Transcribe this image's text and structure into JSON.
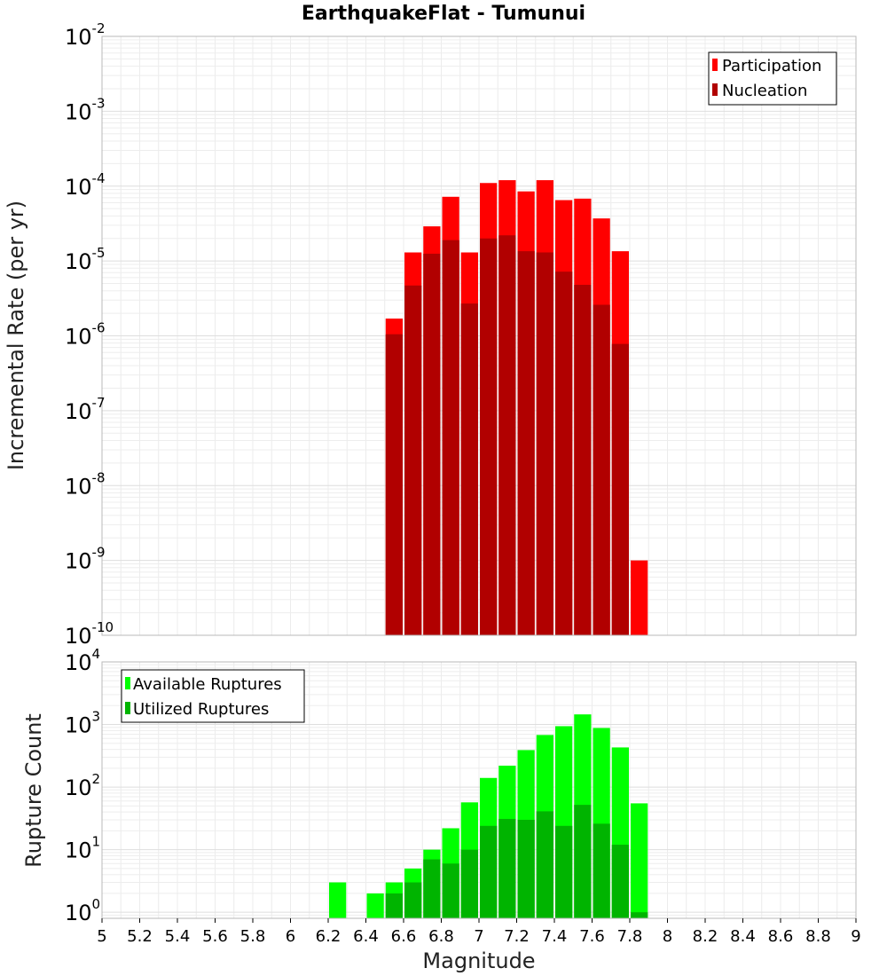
{
  "title": "EarthquakeFlat - Tumunui",
  "chart_data": [
    {
      "type": "bar",
      "id": "rate",
      "ylabel": "Incremental Rate (per yr)",
      "yscale": "log",
      "ylim": [
        1e-10,
        0.01
      ],
      "xlim": [
        5,
        9
      ],
      "bin_width": 0.1,
      "legend_position": "top-right",
      "grid": true,
      "colors": {
        "Participation": "#ff0000",
        "Nucleation": "#b10000"
      },
      "x": [
        6.55,
        6.65,
        6.75,
        6.85,
        6.95,
        7.05,
        7.15,
        7.25,
        7.35,
        7.45,
        7.55,
        7.65,
        7.75,
        7.85
      ],
      "series": [
        {
          "name": "Participation",
          "values": [
            1.7e-06,
            1.3e-05,
            2.9e-05,
            7.2e-05,
            1.3e-05,
            0.00011,
            0.00012,
            8.5e-05,
            0.00012,
            6.5e-05,
            6.8e-05,
            3.7e-05,
            1.35e-05,
            1e-09
          ]
        },
        {
          "name": "Nucleation",
          "values": [
            1.05e-06,
            4.7e-06,
            1.25e-05,
            1.9e-05,
            2.7e-06,
            2e-05,
            2.2e-05,
            1.35e-05,
            1.3e-05,
            7.2e-06,
            4.8e-06,
            2.6e-06,
            7.8e-07,
            null
          ]
        }
      ]
    },
    {
      "type": "bar",
      "id": "count",
      "ylabel": "Rupture Count",
      "xlabel": "Magnitude",
      "yscale": "log",
      "ylim": [
        0.8,
        10000.0
      ],
      "xlim": [
        5,
        9
      ],
      "bin_width": 0.1,
      "legend_position": "top-left",
      "grid": true,
      "colors": {
        "Available Ruptures": "#00ff00",
        "Utilized Ruptures": "#00b400"
      },
      "x": [
        6.25,
        6.45,
        6.55,
        6.65,
        6.75,
        6.85,
        6.95,
        7.05,
        7.15,
        7.25,
        7.35,
        7.45,
        7.55,
        7.65,
        7.75,
        7.85
      ],
      "series": [
        {
          "name": "Available Ruptures",
          "values": [
            3,
            2,
            3,
            5,
            10,
            22,
            57,
            140,
            220,
            390,
            680,
            940,
            1450,
            880,
            430,
            55
          ]
        },
        {
          "name": "Utilized Ruptures",
          "values": [
            null,
            null,
            2,
            3,
            7,
            6,
            10,
            24,
            31,
            30,
            41,
            24,
            52,
            26,
            12,
            1
          ]
        }
      ],
      "xticks": [
        "5",
        "5.2",
        "5.4",
        "5.6",
        "5.8",
        "6",
        "6.2",
        "6.4",
        "6.6",
        "6.8",
        "7",
        "7.2",
        "7.4",
        "7.6",
        "7.8",
        "8",
        "8.2",
        "8.4",
        "8.6",
        "8.8",
        "9"
      ]
    }
  ],
  "top_yticks": [
    {
      "base": "10",
      "exp": "-2"
    },
    {
      "base": "10",
      "exp": "-3"
    },
    {
      "base": "10",
      "exp": "-4"
    },
    {
      "base": "10",
      "exp": "-5"
    },
    {
      "base": "10",
      "exp": "-6"
    },
    {
      "base": "10",
      "exp": "-7"
    },
    {
      "base": "10",
      "exp": "-8"
    },
    {
      "base": "10",
      "exp": "-9"
    },
    {
      "base": "10",
      "exp": "-10"
    }
  ],
  "bottom_yticks": [
    {
      "base": "10",
      "exp": "4"
    },
    {
      "base": "10",
      "exp": "3"
    },
    {
      "base": "10",
      "exp": "2"
    },
    {
      "base": "10",
      "exp": "1"
    },
    {
      "base": "10",
      "exp": "0"
    }
  ]
}
